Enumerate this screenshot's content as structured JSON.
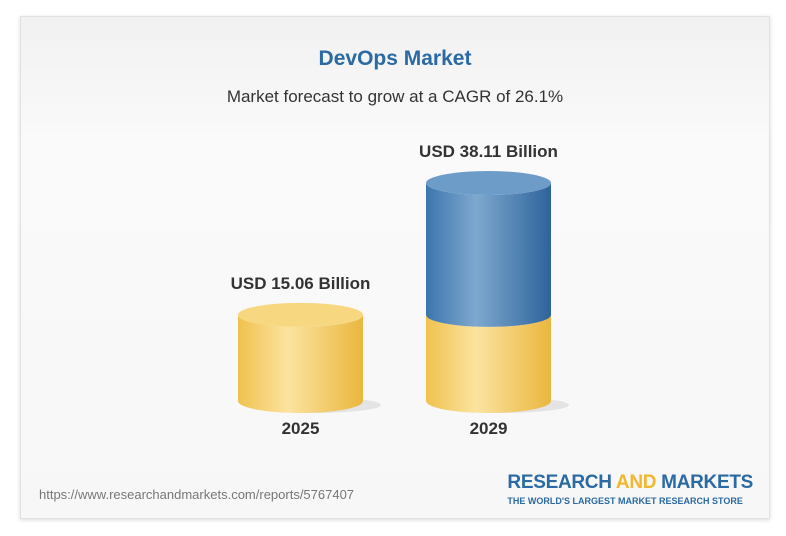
{
  "chart_data": {
    "type": "bar",
    "title": "DevOps Market",
    "subtitle": "Market forecast to grow at a CAGR of 26.1%",
    "categories": [
      "2025",
      "2029"
    ],
    "values": [
      15.06,
      38.11
    ],
    "data_labels": [
      "USD 15.06 Billion",
      "USD 38.11 Billion"
    ],
    "unit": "USD Billion",
    "grid": false,
    "colors": {
      "base": "#f3c95a",
      "growth": "#3f7bb0"
    }
  },
  "footer": {
    "url": "https://www.researchandmarkets.com/reports/5767407",
    "logo_part1": "RESEARCH ",
    "logo_part2": "AND",
    "logo_part3": " MARKETS",
    "tagline": "THE WORLD'S LARGEST MARKET RESEARCH STORE"
  }
}
